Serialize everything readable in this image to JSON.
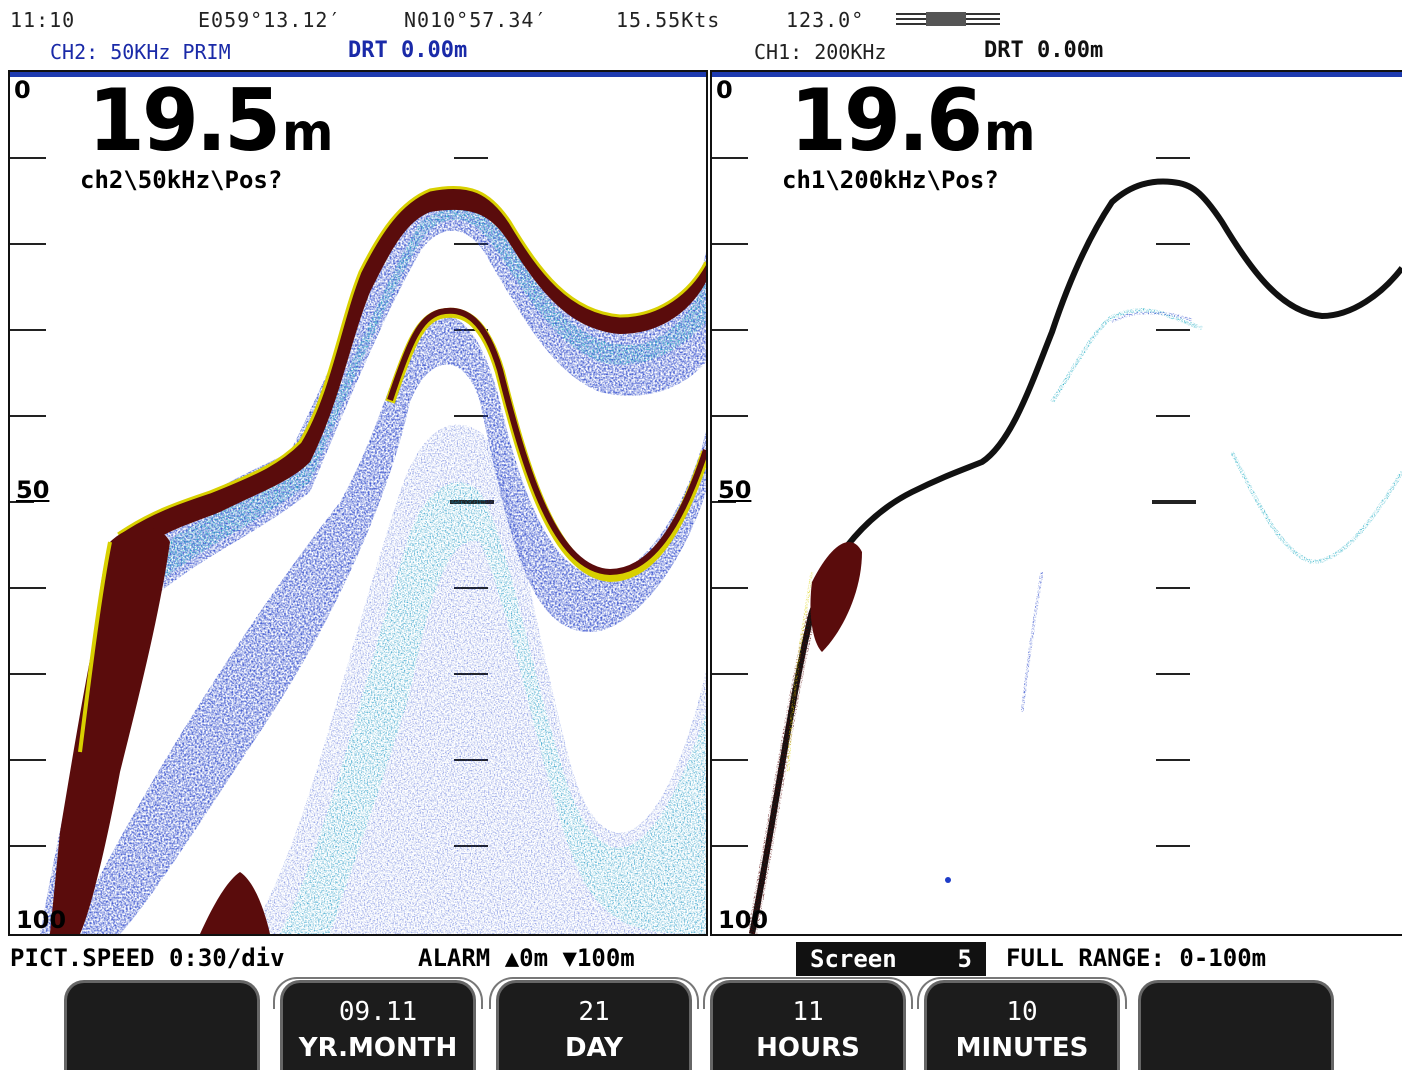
{
  "status": {
    "time": "11:10",
    "longitude": "E059°13.12′",
    "latitude": "N010°57.34′",
    "speed": "15.55Kts",
    "heading": "123.0°"
  },
  "left_header": {
    "channel": "CH2: 50KHz PRIM",
    "drt": "DRT 0.00m"
  },
  "right_header": {
    "channel": "CH1: 200KHz",
    "drt": "DRT 0.00m"
  },
  "left_panel": {
    "depth": "19.5",
    "unit": "m",
    "label": "ch2\\50kHz\\Pos?",
    "scale_top": "0",
    "scale_mid": "50",
    "scale_bottom": "100",
    "colors": {
      "bottom": "#5a0c0c",
      "edge": "#d8d000",
      "mid": "#14a8c0",
      "outer": "#1e3cc8"
    }
  },
  "right_panel": {
    "depth": "19.6",
    "unit": "m",
    "label": "ch1\\200kHz\\Pos?",
    "scale_top": "0",
    "scale_mid": "50",
    "scale_bottom": "100",
    "colors": {
      "bottom": "#111111",
      "echo": "#14a8c0",
      "blob": "#5a0c0c"
    }
  },
  "info": {
    "pict_speed": "PICT.SPEED 0:30/div",
    "alarm": "ALARM ▲0m ▼100m",
    "screen_label": "Screen",
    "screen_num": "5",
    "full_range": "FULL RANGE: 0-100m"
  },
  "softkeys": [
    {
      "value": "",
      "label": ""
    },
    {
      "value": "09.11",
      "label": "YR.MONTH"
    },
    {
      "value": "21",
      "label": "DAY"
    },
    {
      "value": "11",
      "label": "HOURS"
    },
    {
      "value": "10",
      "label": "MINUTES"
    },
    {
      "value": "",
      "label": ""
    }
  ]
}
